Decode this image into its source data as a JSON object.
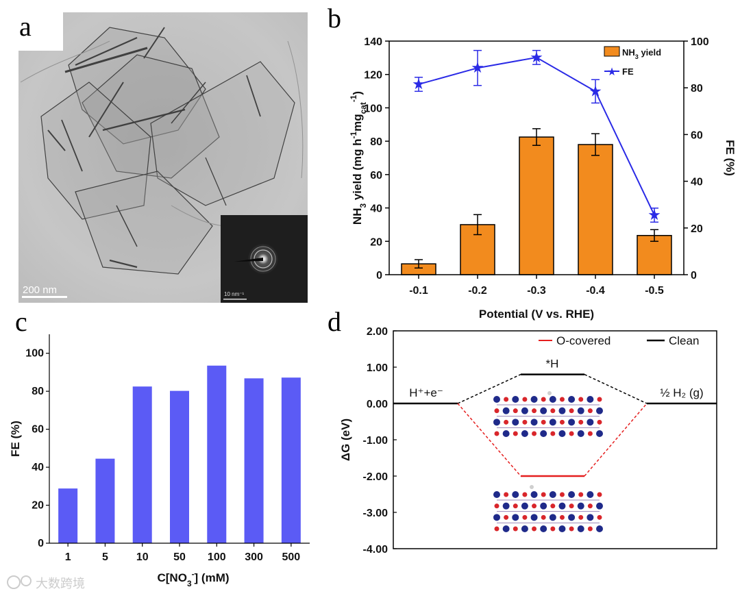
{
  "panels": {
    "a": "a",
    "b": "b",
    "c": "c",
    "d": "d"
  },
  "tem": {
    "scale_bar": "200 nm",
    "inset_scale": "10 nm⁻¹"
  },
  "watermark": "大数跨境",
  "colors": {
    "bar_orange": "#f28b1e",
    "line_blue": "#2a2ae6",
    "bar_purple": "#5b5bf5",
    "o_covered": "#e51e1e",
    "clean": "#000000"
  },
  "chart_data": [
    {
      "id": "b",
      "type": "bar",
      "categories": [
        "-0.1",
        "-0.2",
        "-0.3",
        "-0.4",
        "-0.5"
      ],
      "xlabel": "Potential (V vs. RHE)",
      "ylabel_parts": [
        "NH",
        "3",
        " yield (mg h",
        "-1",
        "mg",
        "cat",
        "-1",
        ")"
      ],
      "ylim": [
        0,
        140
      ],
      "yticks": [
        "0",
        "20",
        "40",
        "60",
        "80",
        "100",
        "120",
        "140"
      ],
      "y2label": "FE (%)",
      "y2lim": [
        0,
        100
      ],
      "y2ticks": [
        "0",
        "20",
        "40",
        "60",
        "80",
        "100"
      ],
      "legend": {
        "bar_parts": [
          "NH",
          "3",
          " yield"
        ],
        "line": "FE"
      },
      "series": [
        {
          "name": "NH3 yield",
          "kind": "bar",
          "axis": "left",
          "values": [
            6.5,
            30,
            82.5,
            78,
            23.5
          ],
          "errors": [
            2.5,
            6,
            5,
            6.5,
            3.5
          ]
        },
        {
          "name": "FE",
          "kind": "line",
          "axis": "right",
          "values": [
            81.5,
            88.5,
            93,
            78.5,
            25.5
          ],
          "errors": [
            3,
            7.5,
            3,
            5,
            3
          ]
        }
      ]
    },
    {
      "id": "c",
      "type": "bar",
      "categories": [
        "1",
        "5",
        "10",
        "50",
        "100",
        "300",
        "500"
      ],
      "xlabel_parts": [
        "C[NO",
        "3",
        "-",
        "] (mM)"
      ],
      "ylabel": "FE (%)",
      "ylim": [
        0,
        110
      ],
      "yticks": [
        "0",
        "20",
        "40",
        "60",
        "80",
        "100"
      ],
      "values": [
        28.8,
        44.5,
        82.5,
        80.2,
        93.5,
        86.8,
        87.2
      ]
    },
    {
      "id": "d",
      "type": "line",
      "title": "",
      "ylabel": "ΔG (eV)",
      "ylim": [
        -4.0,
        2.0
      ],
      "yticks": [
        "2.00",
        "1.00",
        "0.00",
        "-1.00",
        "-2.00",
        "-3.00",
        "-4.00"
      ],
      "states_labels": [
        "H⁺+e⁻",
        "*H",
        "½ H₂ (g)"
      ],
      "legend": [
        "O-covered",
        "Clean"
      ],
      "series": [
        {
          "name": "Clean",
          "values": [
            0.0,
            0.8,
            0.0
          ]
        },
        {
          "name": "O-covered",
          "values": [
            0.0,
            -2.0,
            0.0
          ]
        }
      ]
    }
  ]
}
